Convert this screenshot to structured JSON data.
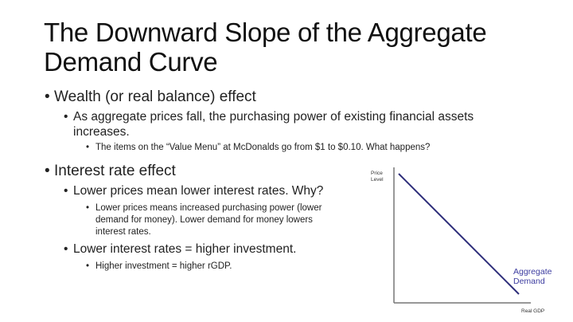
{
  "title": [
    "The Downward Slope of the Aggregate",
    "Demand Curve"
  ],
  "bullets": {
    "wealth": "Wealth (or real balance) effect",
    "wealth_sub1a": "As aggregate prices fall, the purchasing power of existing financial assets",
    "wealth_sub1b": "increases.",
    "wealth_sub2": "The items on the “Value Menu” at McDonalds go from $1 to $0.10.  What happens?",
    "interest": "Interest rate effect",
    "interest_sub1": "Lower prices mean lower interest rates.  Why?",
    "interest_sub1_detail": [
      "Lower prices means increased purchasing power (lower",
      "demand for money).  Lower demand for money lowers",
      "interest rates."
    ],
    "interest_sub2": "Lower interest rates = higher investment.",
    "interest_sub2_detail": "Higher investment = higher rGDP."
  },
  "chart": {
    "ylabel": [
      "Price",
      "Level"
    ],
    "xlabel": "Real GDP",
    "curve_label": [
      "Aggregate",
      "Demand"
    ],
    "curve_color": "#2e2e7a",
    "label_color": "#3c3ca0"
  }
}
